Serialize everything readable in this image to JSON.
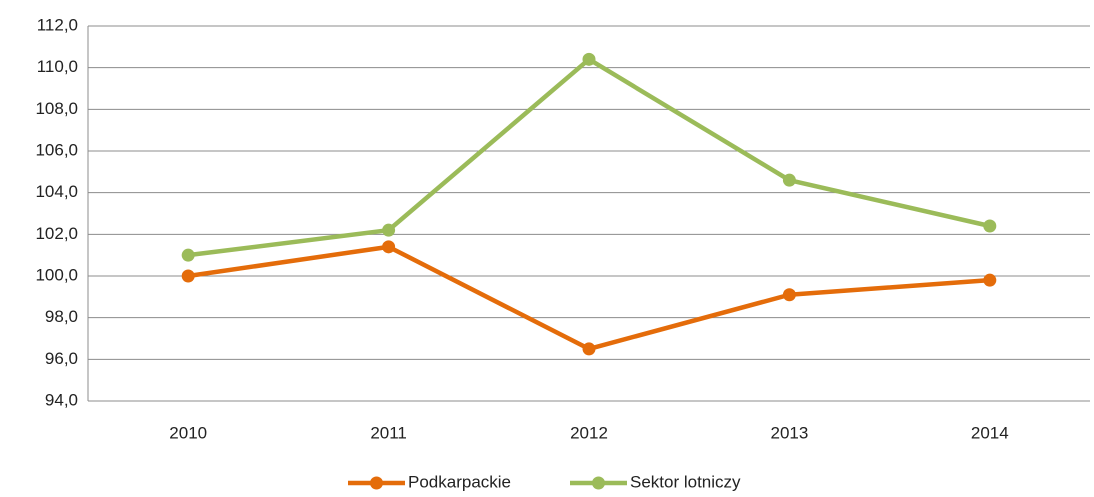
{
  "chart_data": {
    "type": "line",
    "categories": [
      "2010",
      "2011",
      "2012",
      "2013",
      "2014"
    ],
    "series": [
      {
        "name": "Podkarpackie",
        "color": "#e46c0a",
        "values": [
          100.0,
          101.4,
          96.5,
          99.1,
          99.8
        ]
      },
      {
        "name": "Sektor lotniczy",
        "color": "#9bbb59",
        "values": [
          101.0,
          102.2,
          110.4,
          104.6,
          102.4
        ]
      }
    ],
    "ylim": [
      94,
      112
    ],
    "yticks": [
      {
        "value": 94,
        "label": "94,0"
      },
      {
        "value": 96,
        "label": "96,0"
      },
      {
        "value": 98,
        "label": "98,0"
      },
      {
        "value": 100,
        "label": "100,0"
      },
      {
        "value": 102,
        "label": "102,0"
      },
      {
        "value": 104,
        "label": "104,0"
      },
      {
        "value": 106,
        "label": "106,0"
      },
      {
        "value": 108,
        "label": "108,0"
      },
      {
        "value": 110,
        "label": "110,0"
      },
      {
        "value": 112,
        "label": "112,0"
      }
    ],
    "grid": true,
    "legend": "bottom"
  }
}
